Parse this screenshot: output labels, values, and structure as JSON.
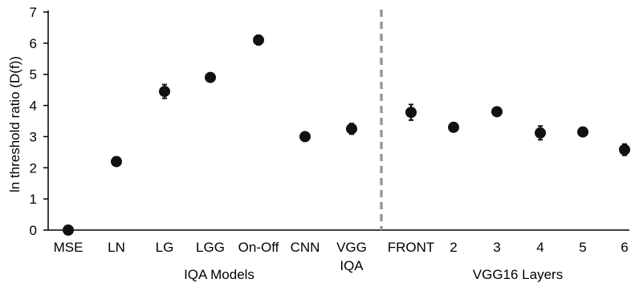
{
  "chart_data": {
    "type": "scatter",
    "ylabel": "ln threshold ratio (D(f))",
    "ylim": [
      0,
      7
    ],
    "yticks": [
      0,
      1,
      2,
      3,
      4,
      5,
      6,
      7
    ],
    "categories": [
      {
        "label": "MSE",
        "sub": "",
        "value": 0.0,
        "err": 0.0
      },
      {
        "label": "LN",
        "sub": "",
        "value": 2.2,
        "err": 0.05
      },
      {
        "label": "LG",
        "sub": "",
        "value": 4.45,
        "err": 0.22
      },
      {
        "label": "LGG",
        "sub": "",
        "value": 4.9,
        "err": 0.05
      },
      {
        "label": "On-Off",
        "sub": "",
        "value": 6.1,
        "err": 0.15
      },
      {
        "label": "CNN",
        "sub": "",
        "value": 3.0,
        "err": 0.05
      },
      {
        "label": "VGG",
        "sub": "IQA",
        "value": 3.25,
        "err": 0.17
      },
      {
        "label": "FRONT",
        "sub": "",
        "value": 3.78,
        "err": 0.25
      },
      {
        "label": "2",
        "sub": "",
        "value": 3.3,
        "err": 0.05
      },
      {
        "label": "3",
        "sub": "",
        "value": 3.8,
        "err": 0.05
      },
      {
        "label": "4",
        "sub": "",
        "value": 3.12,
        "err": 0.22
      },
      {
        "label": "5",
        "sub": "",
        "value": 3.15,
        "err": 0.1
      },
      {
        "label": "6",
        "sub": "",
        "value": 2.58,
        "err": 0.18
      }
    ],
    "groups": [
      {
        "label": "IQA Models",
        "from": 0,
        "to": 6
      },
      {
        "label": "VGG16 Layers",
        "from": 7,
        "to": 12
      }
    ],
    "divider_after_index": 6,
    "colors": {
      "marker": "#111111",
      "axis": "#000000",
      "divider": "#999999"
    }
  }
}
